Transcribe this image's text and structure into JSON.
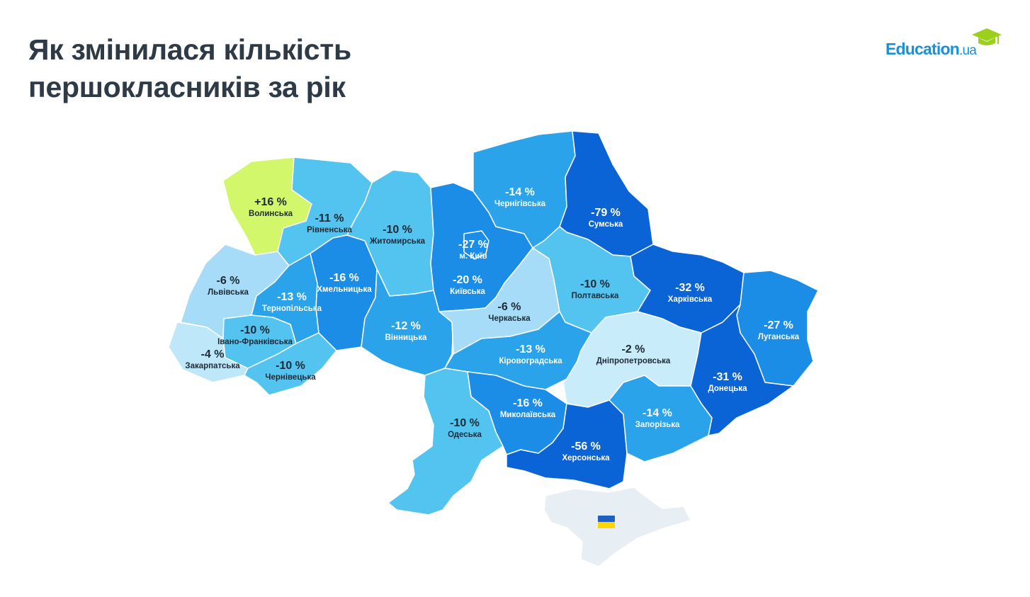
{
  "title": {
    "line1": "Як змінилася кількість",
    "line2": "першокласників за рік"
  },
  "logo": {
    "main": "Education",
    "domain": ".ua",
    "icon": "graduation-cap-icon",
    "color": "#1b8fd9",
    "cap_color": "#9bd11e"
  },
  "map": {
    "regions": [
      {
        "id": "volynska",
        "name": "Волинська",
        "value": "+16 %",
        "color": "#d2f76a",
        "text": "#1d2a35"
      },
      {
        "id": "rivnenska",
        "name": "Рівненська",
        "value": "-11 %",
        "color": "#53c3ef",
        "text": "#1d2a35"
      },
      {
        "id": "zhytomyrska",
        "name": "Житомирська",
        "value": "-10 %",
        "color": "#53c3ef",
        "text": "#1d2a35"
      },
      {
        "id": "kyiv_city",
        "name": "м. Київ",
        "value": "-27 %",
        "color": "#1c8de6",
        "text": "#ffffff"
      },
      {
        "id": "chernihivska",
        "name": "Чернігівська",
        "value": "-14 %",
        "color": "#2aa3eb",
        "text": "#ffffff"
      },
      {
        "id": "sumska",
        "name": "Сумська",
        "value": "-79 %",
        "color": "#0a64d6",
        "text": "#ffffff"
      },
      {
        "id": "lvivska",
        "name": "Львівська",
        "value": "-6 %",
        "color": "#a6dcf7",
        "text": "#1d2a35"
      },
      {
        "id": "ternopilska",
        "name": "Тернопільська",
        "value": "-13 %",
        "color": "#2aa3eb",
        "text": "#ffffff"
      },
      {
        "id": "khmelnytska",
        "name": "Хмельницька",
        "value": "-16 %",
        "color": "#1c8de6",
        "text": "#ffffff"
      },
      {
        "id": "kyivska",
        "name": "Київська",
        "value": "-20 %",
        "color": "#1c8de6",
        "text": "#ffffff"
      },
      {
        "id": "poltavska",
        "name": "Полтавська",
        "value": "-10 %",
        "color": "#53c3ef",
        "text": "#1d2a35"
      },
      {
        "id": "kharkivska",
        "name": "Харківська",
        "value": "-32 %",
        "color": "#0a64d6",
        "text": "#ffffff"
      },
      {
        "id": "luhanska",
        "name": "Луганська",
        "value": "-27 %",
        "color": "#1c8de6",
        "text": "#ffffff"
      },
      {
        "id": "ivano_frankivska",
        "name": "Івано-Франківська",
        "value": "-10 %",
        "color": "#53c3ef",
        "text": "#1d2a35"
      },
      {
        "id": "zakarpatska",
        "name": "Закарпатська",
        "value": "-4 %",
        "color": "#bfe7fa",
        "text": "#1d2a35"
      },
      {
        "id": "chernivetska",
        "name": "Чернівецька",
        "value": "-10 %",
        "color": "#53c3ef",
        "text": "#1d2a35"
      },
      {
        "id": "vinnytska",
        "name": "Вінницька",
        "value": "-12 %",
        "color": "#2aa3eb",
        "text": "#ffffff"
      },
      {
        "id": "cherkaska",
        "name": "Черкаська",
        "value": "-6 %",
        "color": "#a6dcf7",
        "text": "#1d2a35"
      },
      {
        "id": "kirovohradska",
        "name": "Кіровоградська",
        "value": "-13 %",
        "color": "#2aa3eb",
        "text": "#ffffff"
      },
      {
        "id": "dnipropetrovska",
        "name": "Дніпропетровська",
        "value": "-2 %",
        "color": "#c9ecfb",
        "text": "#1d2a35"
      },
      {
        "id": "donetska",
        "name": "Донецька",
        "value": "-31 %",
        "color": "#0a64d6",
        "text": "#ffffff"
      },
      {
        "id": "odeska",
        "name": "Одеська",
        "value": "-10 %",
        "color": "#53c3ef",
        "text": "#1d2a35"
      },
      {
        "id": "mykolaivska",
        "name": "Миколаївська",
        "value": "-16 %",
        "color": "#1c8de6",
        "text": "#ffffff"
      },
      {
        "id": "khersonska",
        "name": "Херсонська",
        "value": "-56 %",
        "color": "#0a64d6",
        "text": "#ffffff"
      },
      {
        "id": "zaporizka",
        "name": "Запорізька",
        "value": "-14 %",
        "color": "#2aa3eb",
        "text": "#ffffff"
      }
    ],
    "crimea": {
      "color": "#e7eff5",
      "icon": "ukraine-flag-icon",
      "flag_colors": [
        "#1f5fbf",
        "#ffd400"
      ]
    }
  }
}
